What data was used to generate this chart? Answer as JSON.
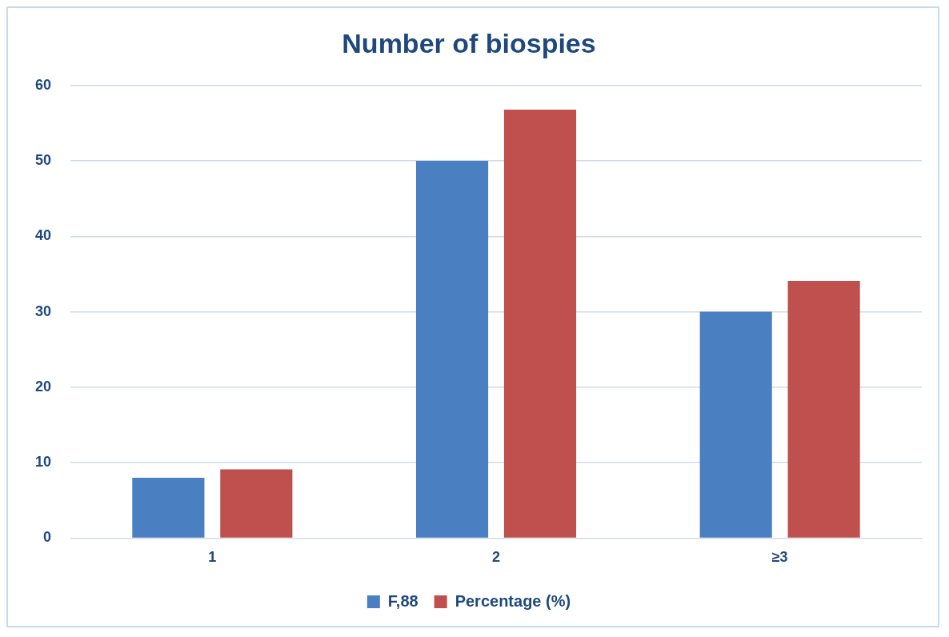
{
  "chart_data": {
    "type": "bar",
    "title": "Number of biospies",
    "categories": [
      "1",
      "2",
      "≥3"
    ],
    "series": [
      {
        "name": "F,88",
        "color": "#4a7fc1",
        "values": [
          8,
          50,
          30
        ]
      },
      {
        "name": "Percentage (%)",
        "color": "#c0504d",
        "values": [
          9.1,
          56.8,
          34.1
        ]
      }
    ],
    "ylim": [
      0,
      60
    ],
    "yticks": [
      0,
      10,
      20,
      30,
      40,
      50,
      60
    ],
    "grid": "y",
    "legend": "bottom"
  }
}
